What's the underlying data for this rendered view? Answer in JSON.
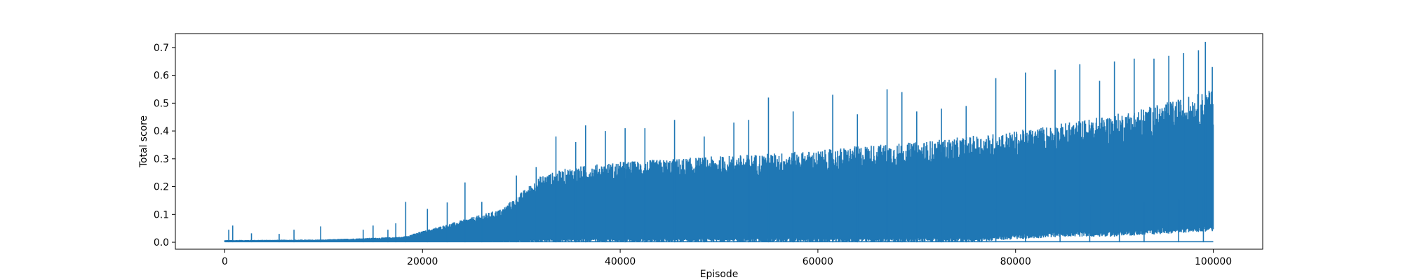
{
  "chart_data": {
    "type": "line",
    "title": "",
    "xlabel": "Episode",
    "ylabel": "Total score",
    "xlim": [
      -5000,
      105000
    ],
    "ylim": [
      -0.025,
      0.75
    ],
    "xticks": [
      0,
      20000,
      40000,
      60000,
      80000,
      100000
    ],
    "xtick_labels": [
      "0",
      "20000",
      "40000",
      "60000",
      "80000",
      "100000"
    ],
    "yticks": [
      0.0,
      0.1,
      0.2,
      0.3,
      0.4,
      0.5,
      0.6,
      0.7
    ],
    "ytick_labels": [
      "0.0",
      "0.1",
      "0.2",
      "0.3",
      "0.4",
      "0.5",
      "0.6",
      "0.7"
    ],
    "grid": false,
    "legend": "none",
    "series": [
      {
        "color": "#1f77b4",
        "description_free": true,
        "x_range": [
          0,
          100000
        ],
        "envelope": {
          "x": [
            0,
            10000,
            18000,
            20000,
            25000,
            28000,
            30000,
            32000,
            35000,
            40000,
            45000,
            50000,
            55000,
            60000,
            65000,
            70000,
            75000,
            80000,
            85000,
            90000,
            95000,
            100000
          ],
          "typical_max": [
            0.008,
            0.01,
            0.02,
            0.04,
            0.09,
            0.12,
            0.18,
            0.24,
            0.27,
            0.29,
            0.3,
            0.31,
            0.32,
            0.33,
            0.35,
            0.36,
            0.38,
            0.4,
            0.43,
            0.46,
            0.5,
            0.55
          ],
          "typical_min": [
            0.0,
            0.0,
            0.0,
            0.0,
            0.0,
            0.0,
            0.0,
            0.0,
            0.0,
            0.0,
            0.0,
            0.0,
            0.0,
            0.0,
            0.0,
            0.0,
            0.0,
            0.01,
            0.02,
            0.02,
            0.03,
            0.04
          ]
        },
        "peaks": [
          [
            400,
            0.045
          ],
          [
            800,
            0.06
          ],
          [
            2700,
            0.032
          ],
          [
            5500,
            0.03
          ],
          [
            7000,
            0.045
          ],
          [
            9700,
            0.057
          ],
          [
            14000,
            0.045
          ],
          [
            15000,
            0.06
          ],
          [
            16500,
            0.045
          ],
          [
            17300,
            0.068
          ],
          [
            18300,
            0.145
          ],
          [
            20500,
            0.12
          ],
          [
            22500,
            0.143
          ],
          [
            24300,
            0.215
          ],
          [
            26000,
            0.145
          ],
          [
            29500,
            0.24
          ],
          [
            31500,
            0.27
          ],
          [
            33500,
            0.38
          ],
          [
            35500,
            0.36
          ],
          [
            36500,
            0.42
          ],
          [
            38500,
            0.4
          ],
          [
            40500,
            0.41
          ],
          [
            42500,
            0.41
          ],
          [
            45500,
            0.44
          ],
          [
            48500,
            0.38
          ],
          [
            51500,
            0.43
          ],
          [
            53000,
            0.44
          ],
          [
            55000,
            0.52
          ],
          [
            57500,
            0.47
          ],
          [
            61500,
            0.53
          ],
          [
            64000,
            0.46
          ],
          [
            67000,
            0.55
          ],
          [
            68500,
            0.54
          ],
          [
            70000,
            0.47
          ],
          [
            72500,
            0.48
          ],
          [
            75000,
            0.49
          ],
          [
            78000,
            0.59
          ],
          [
            81000,
            0.61
          ],
          [
            84000,
            0.62
          ],
          [
            86500,
            0.64
          ],
          [
            88500,
            0.58
          ],
          [
            90000,
            0.65
          ],
          [
            92000,
            0.66
          ],
          [
            94000,
            0.66
          ],
          [
            95500,
            0.67
          ],
          [
            97000,
            0.68
          ],
          [
            98500,
            0.69
          ],
          [
            99200,
            0.72
          ],
          [
            99900,
            0.63
          ]
        ],
        "dips": [
          [
            78000,
            0.0
          ],
          [
            81000,
            0.0
          ],
          [
            84500,
            0.0
          ],
          [
            87500,
            0.0
          ],
          [
            90500,
            0.0
          ],
          [
            93000,
            0.0
          ],
          [
            96500,
            0.0
          ],
          [
            99000,
            0.0
          ]
        ]
      }
    ]
  }
}
